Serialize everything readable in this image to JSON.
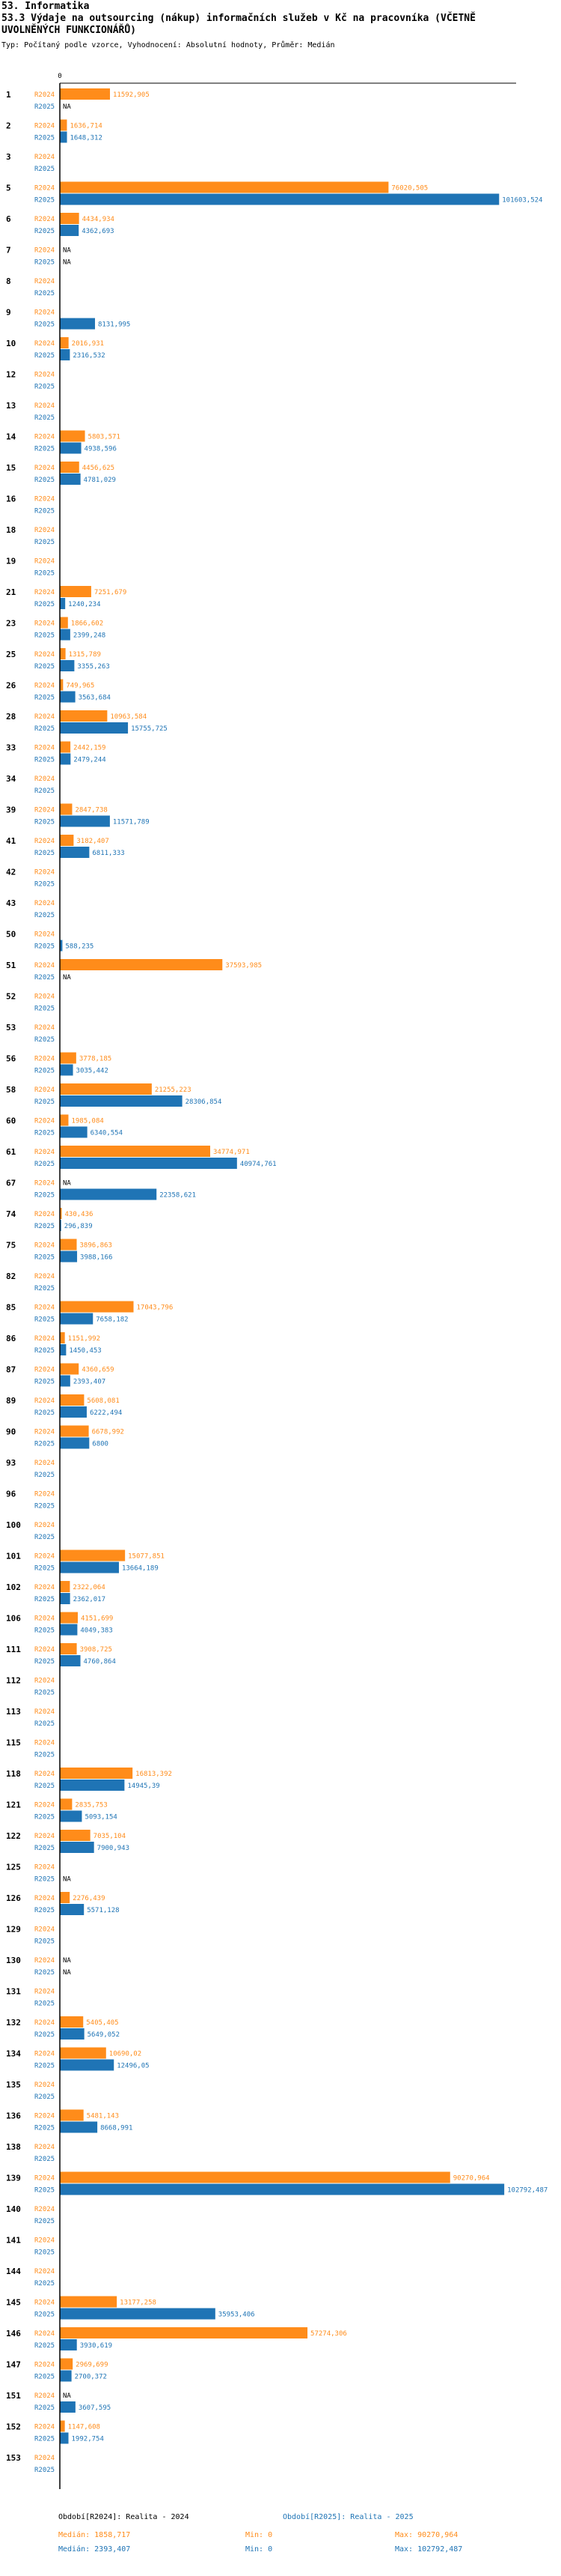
{
  "header": {
    "section": "53. Informatika",
    "title": "53.3 Výdaje na outsourcing (nákup) informačních služeb v Kč na pracovníka (VČETNĚ UVOLNĚNÝCH FUNKCIONÁŘŮ)",
    "subtitle": "Typ: Počítaný podle vzorce, Vyhodnocení: Absolutní hodnoty, Průměr: Medián"
  },
  "legend": {
    "s1_label": "Období[R2024]: Realita - 2024",
    "s2_label": "Období[R2025]: Realita - 2025",
    "s1_median": "Medián: 1858,717",
    "s1_min": "Min: 0",
    "s1_max": "Max: 90270,964",
    "s2_median": "Medián: 2393,407",
    "s2_min": "Min: 0",
    "s2_max": "Max: 102792,487"
  },
  "colors": {
    "s1": "#ff8c1a",
    "s2": "#1f74b5",
    "axis": "#000000",
    "label": "#1f74b5"
  },
  "chart_data": {
    "type": "bar",
    "orientation": "horizontal",
    "title": "53.3 Výdaje na outsourcing (nákup) informačních služeb v Kč na pracovníka (VČETNĚ UVOLNĚNÝCH FUNKCIONÁŘŮ)",
    "xlim": [
      0,
      105000
    ],
    "x_tick_label": "0",
    "series_names": [
      "R2024",
      "R2025"
    ],
    "na_label": "NA",
    "rows": [
      {
        "cat": "1",
        "r24": "11592,905",
        "r25": "NA"
      },
      {
        "cat": "2",
        "r24": "1636,714",
        "r25": "1648,312"
      },
      {
        "cat": "3",
        "r24": "",
        "r25": ""
      },
      {
        "cat": "5",
        "r24": "76020,505",
        "r25": "101603,524"
      },
      {
        "cat": "6",
        "r24": "4434,934",
        "r25": "4362,693"
      },
      {
        "cat": "7",
        "r24": "NA",
        "r25": "NA"
      },
      {
        "cat": "8",
        "r24": "",
        "r25": ""
      },
      {
        "cat": "9",
        "r24": "",
        "r25": "8131,995"
      },
      {
        "cat": "10",
        "r24": "2016,931",
        "r25": "2316,532"
      },
      {
        "cat": "12",
        "r24": "",
        "r25": ""
      },
      {
        "cat": "13",
        "r24": "",
        "r25": ""
      },
      {
        "cat": "14",
        "r24": "5803,571",
        "r25": "4938,596"
      },
      {
        "cat": "15",
        "r24": "4456,625",
        "r25": "4781,029"
      },
      {
        "cat": "16",
        "r24": "",
        "r25": ""
      },
      {
        "cat": "18",
        "r24": "",
        "r25": ""
      },
      {
        "cat": "19",
        "r24": "",
        "r25": ""
      },
      {
        "cat": "21",
        "r24": "7251,679",
        "r25": "1240,234"
      },
      {
        "cat": "23",
        "r24": "1866,602",
        "r25": "2399,248"
      },
      {
        "cat": "25",
        "r24": "1315,789",
        "r25": "3355,263"
      },
      {
        "cat": "26",
        "r24": "749,965",
        "r25": "3563,684"
      },
      {
        "cat": "28",
        "r24": "10963,584",
        "r25": "15755,725"
      },
      {
        "cat": "33",
        "r24": "2442,159",
        "r25": "2479,244"
      },
      {
        "cat": "34",
        "r24": "",
        "r25": ""
      },
      {
        "cat": "39",
        "r24": "2847,738",
        "r25": "11571,789"
      },
      {
        "cat": "41",
        "r24": "3182,407",
        "r25": "6811,333"
      },
      {
        "cat": "42",
        "r24": "",
        "r25": ""
      },
      {
        "cat": "43",
        "r24": "",
        "r25": ""
      },
      {
        "cat": "50",
        "r24": "",
        "r25": "588,235"
      },
      {
        "cat": "51",
        "r24": "37593,985",
        "r25": "NA"
      },
      {
        "cat": "52",
        "r24": "",
        "r25": ""
      },
      {
        "cat": "53",
        "r24": "",
        "r25": ""
      },
      {
        "cat": "56",
        "r24": "3778,185",
        "r25": "3035,442"
      },
      {
        "cat": "58",
        "r24": "21255,223",
        "r25": "28306,854"
      },
      {
        "cat": "60",
        "r24": "1985,084",
        "r25": "6340,554"
      },
      {
        "cat": "61",
        "r24": "34774,971",
        "r25": "40974,761"
      },
      {
        "cat": "67",
        "r24": "NA",
        "r25": "22358,621"
      },
      {
        "cat": "74",
        "r24": "430,436",
        "r25": "296,839"
      },
      {
        "cat": "75",
        "r24": "3896,863",
        "r25": "3988,166"
      },
      {
        "cat": "82",
        "r24": "",
        "r25": ""
      },
      {
        "cat": "85",
        "r24": "17043,796",
        "r25": "7658,182"
      },
      {
        "cat": "86",
        "r24": "1151,992",
        "r25": "1450,453"
      },
      {
        "cat": "87",
        "r24": "4360,659",
        "r25": "2393,407"
      },
      {
        "cat": "89",
        "r24": "5608,081",
        "r25": "6222,494"
      },
      {
        "cat": "90",
        "r24": "6678,992",
        "r25": "6800"
      },
      {
        "cat": "93",
        "r24": "",
        "r25": ""
      },
      {
        "cat": "96",
        "r24": "",
        "r25": ""
      },
      {
        "cat": "100",
        "r24": "",
        "r25": ""
      },
      {
        "cat": "101",
        "r24": "15077,851",
        "r25": "13664,189"
      },
      {
        "cat": "102",
        "r24": "2322,064",
        "r25": "2362,017"
      },
      {
        "cat": "106",
        "r24": "4151,699",
        "r25": "4049,383"
      },
      {
        "cat": "111",
        "r24": "3908,725",
        "r25": "4760,864"
      },
      {
        "cat": "112",
        "r24": "",
        "r25": ""
      },
      {
        "cat": "113",
        "r24": "",
        "r25": ""
      },
      {
        "cat": "115",
        "r24": "",
        "r25": ""
      },
      {
        "cat": "118",
        "r24": "16813,392",
        "r25": "14945,39"
      },
      {
        "cat": "121",
        "r24": "2835,753",
        "r25": "5093,154"
      },
      {
        "cat": "122",
        "r24": "7035,104",
        "r25": "7900,943"
      },
      {
        "cat": "125",
        "r24": "",
        "r25": "NA"
      },
      {
        "cat": "126",
        "r24": "2276,439",
        "r25": "5571,128"
      },
      {
        "cat": "129",
        "r24": "",
        "r25": ""
      },
      {
        "cat": "130",
        "r24": "NA",
        "r25": "NA"
      },
      {
        "cat": "131",
        "r24": "",
        "r25": ""
      },
      {
        "cat": "132",
        "r24": "5405,405",
        "r25": "5649,052"
      },
      {
        "cat": "134",
        "r24": "10690,02",
        "r25": "12496,05"
      },
      {
        "cat": "135",
        "r24": "",
        "r25": ""
      },
      {
        "cat": "136",
        "r24": "5481,143",
        "r25": "8668,991"
      },
      {
        "cat": "138",
        "r24": "",
        "r25": ""
      },
      {
        "cat": "139",
        "r24": "90270,964",
        "r25": "102792,487"
      },
      {
        "cat": "140",
        "r24": "",
        "r25": ""
      },
      {
        "cat": "141",
        "r24": "",
        "r25": ""
      },
      {
        "cat": "144",
        "r24": "",
        "r25": ""
      },
      {
        "cat": "145",
        "r24": "13177,258",
        "r25": "35953,406"
      },
      {
        "cat": "146",
        "r24": "57274,306",
        "r25": "3930,619"
      },
      {
        "cat": "147",
        "r24": "2969,699",
        "r25": "2700,372"
      },
      {
        "cat": "151",
        "r24": "NA",
        "r25": "3607,595"
      },
      {
        "cat": "152",
        "r24": "1147,608",
        "r25": "1992,754"
      },
      {
        "cat": "153",
        "r24": "",
        "r25": ""
      }
    ]
  }
}
